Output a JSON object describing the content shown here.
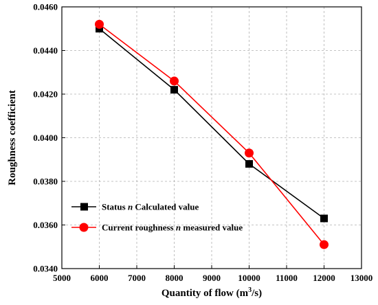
{
  "chart_data": {
    "type": "line",
    "title": "",
    "xlabel": "Quantity of flow (m³/s)",
    "xlabel_main": "Quantity of flow (m",
    "xlabel_sup": "3",
    "xlabel_tail": "/s)",
    "ylabel": "Roughness coefficient",
    "xlim": [
      5000,
      13000
    ],
    "ylim": [
      0.034,
      0.046
    ],
    "x_ticks": [
      5000,
      6000,
      7000,
      8000,
      9000,
      10000,
      11000,
      12000,
      13000
    ],
    "y_ticks": [
      0.034,
      0.036,
      0.038,
      0.04,
      0.042,
      0.044,
      0.046
    ],
    "x_tick_labels": [
      "5000",
      "6000",
      "7000",
      "8000",
      "9000",
      "10000",
      "11000",
      "12000",
      "13000"
    ],
    "y_tick_labels": [
      "0.0340",
      "0.0360",
      "0.0380",
      "0.0400",
      "0.0420",
      "0.0440",
      "0.0460"
    ],
    "grid": true,
    "legend_position": "bottom-left",
    "series": [
      {
        "name": "Status n Calculated value",
        "name_parts": [
          "Status ",
          "n",
          " Calculated value"
        ],
        "color": "#000000",
        "marker": "square",
        "x": [
          6000,
          8000,
          10000,
          12000
        ],
        "y": [
          0.045,
          0.0422,
          0.0388,
          0.0363
        ]
      },
      {
        "name": "Current roughness n measured value",
        "name_parts": [
          "Current roughness ",
          "n",
          " measured value"
        ],
        "color": "#ff0000",
        "marker": "circle",
        "x": [
          6000,
          8000,
          10000,
          12000
        ],
        "y": [
          0.0452,
          0.0426,
          0.0393,
          0.0351
        ]
      }
    ]
  }
}
